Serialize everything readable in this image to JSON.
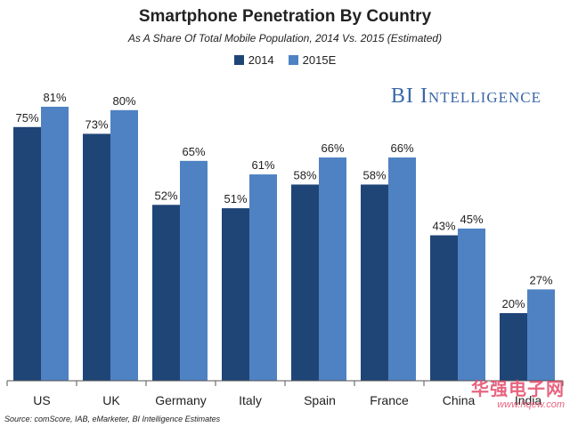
{
  "colors": {
    "series_2014": "#1f4577",
    "series_2015": "#4f82c2",
    "axis": "#555555",
    "brand": "#3a66a8"
  },
  "brand": "BI Intelligence",
  "source": "Source: comScore, IAB, eMarketer, BI Intelligence Estimates",
  "watermark": {
    "main": "华强电子网",
    "url": "www.hqew.com"
  },
  "chart_data": {
    "type": "bar",
    "title": "Smartphone Penetration By Country",
    "subtitle": "As A Share Of Total Mobile Population, 2014 Vs. 2015 (Estimated)",
    "xlabel": "",
    "ylabel": "",
    "ylim": [
      0,
      100
    ],
    "grid": false,
    "legend_position": "top-center",
    "categories": [
      "US",
      "UK",
      "Germany",
      "Italy",
      "Spain",
      "France",
      "China",
      "India"
    ],
    "series": [
      {
        "name": "2014",
        "values": [
          75,
          73,
          52,
          51,
          58,
          58,
          43,
          20
        ],
        "labels": [
          "75%",
          "73%",
          "52%",
          "51%",
          "58%",
          "58%",
          "43%",
          "20%"
        ]
      },
      {
        "name": "2015E",
        "values": [
          81,
          80,
          65,
          61,
          66,
          66,
          45,
          27
        ],
        "labels": [
          "81%",
          "80%",
          "65%",
          "61%",
          "66%",
          "66%",
          "45%",
          "27%"
        ]
      }
    ]
  }
}
